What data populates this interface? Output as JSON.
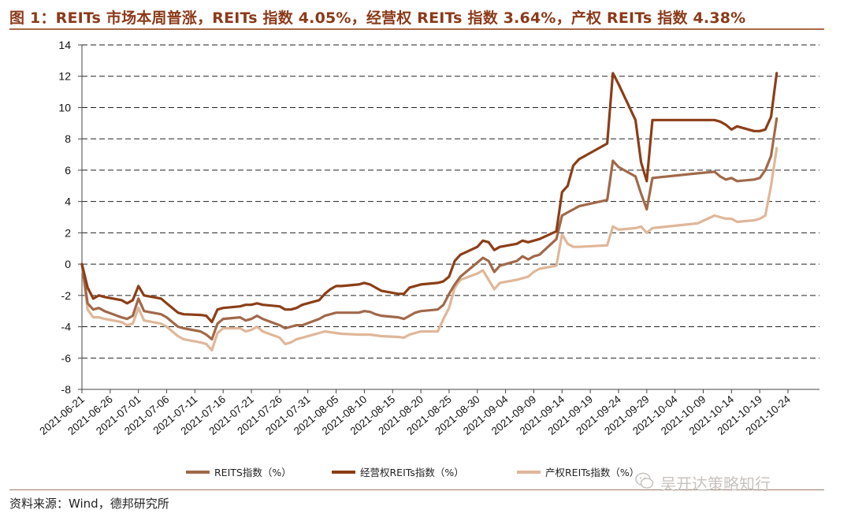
{
  "header": {
    "title": "图 1：REITs 市场本周普涨，REITs 指数 4.05%，经营权 REITs 指数 3.64%，产权 REITs 指数 4.38%"
  },
  "footer": {
    "source": "资料来源：Wind，德邦研究所",
    "watermark": "吴开达策略知行"
  },
  "chart_data": {
    "type": "line",
    "title": "",
    "xlabel": "",
    "ylabel": "",
    "ylim": [
      -8,
      14
    ],
    "yticks": [
      -8,
      -6,
      -4,
      -2,
      0,
      2,
      4,
      6,
      8,
      10,
      12,
      14
    ],
    "grid": "horizontal-dashed",
    "legend_position": "bottom",
    "x_tick_labels": [
      "2021-06-21",
      "2021-06-26",
      "2021-07-01",
      "2021-07-06",
      "2021-07-11",
      "2021-07-16",
      "2021-07-21",
      "2021-07-26",
      "2021-07-31",
      "2021-08-05",
      "2021-08-10",
      "2021-08-15",
      "2021-08-20",
      "2021-08-25",
      "2021-08-30",
      "2021-09-04",
      "2021-09-09",
      "2021-09-14",
      "2021-09-19",
      "2021-09-24",
      "2021-09-29",
      "2021-10-04",
      "2021-10-09",
      "2021-10-14",
      "2021-10-19",
      "2021-10-24"
    ],
    "x": [
      "2021-06-21",
      "2021-06-22",
      "2021-06-23",
      "2021-06-24",
      "2021-06-25",
      "2021-06-28",
      "2021-06-29",
      "2021-06-30",
      "2021-07-01",
      "2021-07-02",
      "2021-07-05",
      "2021-07-06",
      "2021-07-07",
      "2021-07-08",
      "2021-07-09",
      "2021-07-12",
      "2021-07-13",
      "2021-07-14",
      "2021-07-15",
      "2021-07-16",
      "2021-07-19",
      "2021-07-20",
      "2021-07-21",
      "2021-07-22",
      "2021-07-23",
      "2021-07-26",
      "2021-07-27",
      "2021-07-28",
      "2021-07-29",
      "2021-07-30",
      "2021-08-02",
      "2021-08-03",
      "2021-08-04",
      "2021-08-05",
      "2021-08-06",
      "2021-08-09",
      "2021-08-10",
      "2021-08-11",
      "2021-08-12",
      "2021-08-13",
      "2021-08-16",
      "2021-08-17",
      "2021-08-18",
      "2021-08-19",
      "2021-08-20",
      "2021-08-23",
      "2021-08-24",
      "2021-08-25",
      "2021-08-26",
      "2021-08-27",
      "2021-08-30",
      "2021-08-31",
      "2021-09-01",
      "2021-09-02",
      "2021-09-03",
      "2021-09-06",
      "2021-09-07",
      "2021-09-08",
      "2021-09-09",
      "2021-09-10",
      "2021-09-13",
      "2021-09-14",
      "2021-09-15",
      "2021-09-16",
      "2021-09-17",
      "2021-09-22",
      "2021-09-23",
      "2021-09-24",
      "2021-09-27",
      "2021-09-28",
      "2021-09-29",
      "2021-09-30",
      "2021-10-08",
      "2021-10-11",
      "2021-10-12",
      "2021-10-13",
      "2021-10-14",
      "2021-10-15",
      "2021-10-18",
      "2021-10-19",
      "2021-10-20",
      "2021-10-21",
      "2021-10-22"
    ],
    "series": [
      {
        "name": "REITS指数（%）",
        "color": "#A0694A",
        "values": [
          0,
          -2.5,
          -2.9,
          -2.8,
          -3.0,
          -3.4,
          -3.5,
          -3.3,
          -2.2,
          -3.0,
          -3.2,
          -3.4,
          -3.7,
          -4.0,
          -4.1,
          -4.3,
          -4.5,
          -4.8,
          -3.8,
          -3.5,
          -3.4,
          -3.6,
          -3.5,
          -3.3,
          -3.5,
          -3.9,
          -4.1,
          -4.0,
          -3.9,
          -3.9,
          -3.5,
          -3.3,
          -3.2,
          -3.1,
          -3.1,
          -3.1,
          -3.0,
          -3.05,
          -3.2,
          -3.3,
          -3.4,
          -3.5,
          -3.3,
          -3.1,
          -3.0,
          -2.9,
          -2.6,
          -1.9,
          -1.3,
          -0.8,
          0.1,
          0.4,
          0.2,
          -0.5,
          -0.1,
          0.2,
          0.5,
          0.3,
          0.5,
          0.6,
          1.6,
          3.1,
          3.3,
          3.5,
          3.7,
          4.1,
          6.6,
          6.2,
          5.6,
          4.5,
          3.5,
          5.5,
          5.8,
          5.9,
          5.6,
          5.4,
          5.5,
          5.3,
          5.4,
          5.5,
          6.0,
          6.9,
          9.3
        ]
      },
      {
        "name": "经营权REITs指数（%）",
        "color": "#8B3E17",
        "values": [
          0,
          -1.5,
          -2.2,
          -2.0,
          -2.1,
          -2.3,
          -2.5,
          -2.3,
          -1.4,
          -2.0,
          -2.2,
          -2.5,
          -2.8,
          -3.1,
          -3.2,
          -3.25,
          -3.3,
          -3.7,
          -2.9,
          -2.8,
          -2.7,
          -2.6,
          -2.6,
          -2.5,
          -2.6,
          -2.7,
          -2.9,
          -2.9,
          -2.8,
          -2.6,
          -2.3,
          -1.9,
          -1.6,
          -1.4,
          -1.4,
          -1.3,
          -1.2,
          -1.3,
          -1.5,
          -1.7,
          -1.9,
          -1.9,
          -1.5,
          -1.4,
          -1.3,
          -1.2,
          -1.1,
          -0.8,
          0.2,
          0.6,
          1.1,
          1.5,
          1.4,
          0.9,
          1.1,
          1.3,
          1.5,
          1.4,
          1.5,
          1.6,
          2.1,
          4.6,
          5.0,
          6.3,
          6.7,
          7.7,
          12.2,
          11.5,
          9.2,
          6.5,
          5.3,
          9.2,
          9.2,
          9.2,
          9.1,
          8.9,
          8.6,
          8.8,
          8.5,
          8.5,
          8.6,
          9.4,
          12.2
        ]
      },
      {
        "name": "产权REITs指数（%）",
        "color": "#DFB799",
        "values": [
          0,
          -2.9,
          -3.4,
          -3.4,
          -3.5,
          -3.7,
          -3.9,
          -3.8,
          -2.8,
          -3.6,
          -3.8,
          -4.0,
          -4.3,
          -4.6,
          -4.8,
          -5.0,
          -5.1,
          -5.5,
          -4.4,
          -4.1,
          -4.1,
          -4.3,
          -4.2,
          -4.0,
          -4.3,
          -4.7,
          -5.1,
          -5.0,
          -4.8,
          -4.7,
          -4.4,
          -4.3,
          -4.35,
          -4.4,
          -4.45,
          -4.5,
          -4.5,
          -4.5,
          -4.55,
          -4.6,
          -4.65,
          -4.7,
          -4.5,
          -4.4,
          -4.3,
          -4.3,
          -3.5,
          -2.8,
          -1.5,
          -1.0,
          -0.6,
          -0.4,
          -1.0,
          -1.6,
          -1.2,
          -1.0,
          -0.9,
          -0.8,
          -0.5,
          -0.3,
          -0.1,
          1.9,
          1.3,
          1.1,
          1.1,
          1.2,
          2.4,
          2.2,
          2.3,
          2.4,
          2.0,
          2.3,
          2.6,
          3.1,
          3.0,
          2.9,
          2.9,
          2.7,
          2.8,
          2.9,
          3.1,
          5.0,
          7.4
        ]
      }
    ]
  }
}
